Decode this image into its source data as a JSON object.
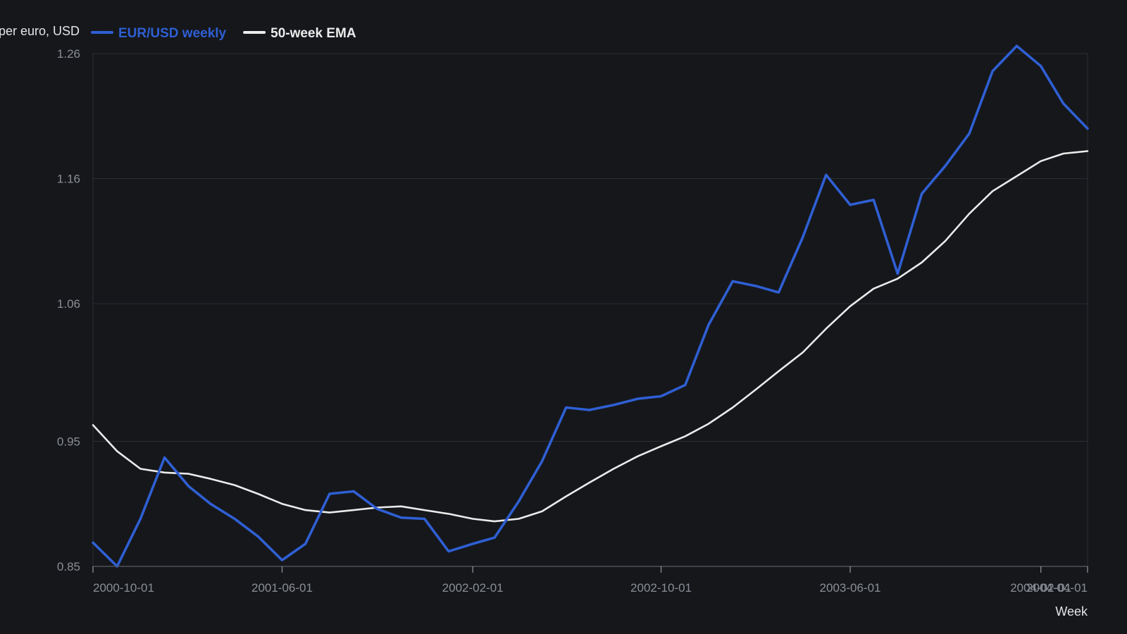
{
  "chart_data": {
    "type": "line",
    "title": "",
    "ylabel": "per euro, USD",
    "xlabel": "Week",
    "ylim": [
      0.85,
      1.26
    ],
    "yticks": [
      "0.85",
      "0.95",
      "1.06",
      "1.16",
      "1.26"
    ],
    "xticks": [
      "2000-10-01",
      "2001-06-01",
      "2002-02-01",
      "2002-10-01",
      "2003-06-01",
      "2004-02-01",
      "2004-04-01"
    ],
    "x": [
      "2000-10-01",
      "2000-11-01",
      "2000-12-01",
      "2001-01-01",
      "2001-02-01",
      "2001-03-01",
      "2001-04-01",
      "2001-05-01",
      "2001-06-01",
      "2001-07-01",
      "2001-08-01",
      "2001-09-01",
      "2001-10-01",
      "2001-11-01",
      "2001-12-01",
      "2002-01-01",
      "2002-02-01",
      "2002-03-01",
      "2002-04-01",
      "2002-05-01",
      "2002-06-01",
      "2002-07-01",
      "2002-08-01",
      "2002-09-01",
      "2002-10-01",
      "2002-11-01",
      "2002-12-01",
      "2003-01-01",
      "2003-02-01",
      "2003-03-01",
      "2003-04-01",
      "2003-05-01",
      "2003-06-01",
      "2003-07-01",
      "2003-08-01",
      "2003-09-01",
      "2003-10-01",
      "2003-11-01",
      "2003-12-01",
      "2004-01-01",
      "2004-02-01",
      "2004-03-01",
      "2004-04-01"
    ],
    "grid": true,
    "legend_position": "top-left",
    "series": [
      {
        "name": "EUR/USD weekly",
        "color": "#2f5fd3",
        "values": [
          0.869,
          0.85,
          0.888,
          0.937,
          0.914,
          0.9,
          0.888,
          0.874,
          0.855,
          0.868,
          0.908,
          0.91,
          0.896,
          0.889,
          0.888,
          0.862,
          0.868,
          0.873,
          0.902,
          0.934,
          0.977,
          0.975,
          0.979,
          0.984,
          0.986,
          0.995,
          1.043,
          1.078,
          1.074,
          1.069,
          1.113,
          1.163,
          1.139,
          1.143,
          1.084,
          1.148,
          1.17,
          1.196,
          1.246,
          1.266,
          1.25,
          1.22,
          1.2
        ]
      },
      {
        "name": "50-week EMA",
        "color": "#ebebeb",
        "values": [
          0.963,
          0.942,
          0.928,
          0.925,
          0.924,
          0.92,
          0.915,
          0.908,
          0.9,
          0.895,
          0.893,
          0.895,
          0.897,
          0.898,
          0.895,
          0.892,
          0.888,
          0.886,
          0.888,
          0.894,
          0.906,
          0.917,
          0.928,
          0.938,
          0.946,
          0.954,
          0.964,
          0.977,
          0.992,
          1.006,
          1.021,
          1.04,
          1.058,
          1.072,
          1.08,
          1.093,
          1.11,
          1.132,
          1.15,
          1.162,
          1.174,
          1.18,
          1.182
        ]
      }
    ]
  }
}
